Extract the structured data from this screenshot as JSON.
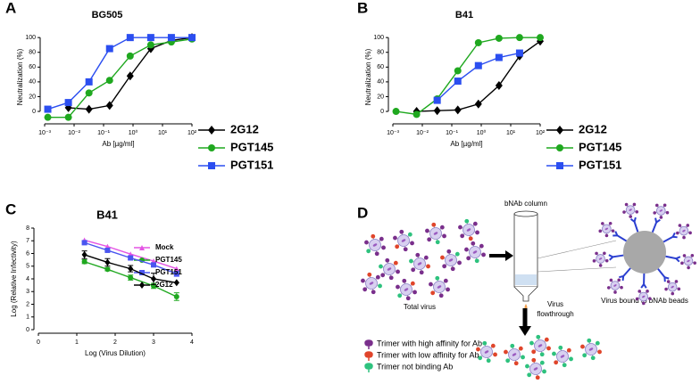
{
  "chart_data": [
    {
      "type": "line",
      "panel": "A",
      "title": "BG505",
      "x_label": "Ab [µg/ml]",
      "y_label": "Neutralization (%)",
      "xscale": "log",
      "xlim": [
        0.001,
        100
      ],
      "xticks": [
        {
          "value": 0.001,
          "label": "10⁻³"
        },
        {
          "value": 0.01,
          "label": "10⁻²"
        },
        {
          "value": 0.1,
          "label": "10⁻¹"
        },
        {
          "value": 1,
          "label": "10⁰"
        },
        {
          "value": 10,
          "label": "10¹"
        },
        {
          "value": 100,
          "label": "10²"
        }
      ],
      "ylim": [
        -12,
        105
      ],
      "yticks": [
        0,
        20,
        40,
        60,
        80,
        100
      ],
      "legend": "right",
      "x": [
        0.00128,
        0.0064,
        0.032,
        0.16,
        0.8,
        4,
        20,
        100
      ],
      "series": [
        {
          "name": "2G12",
          "color": "#000000",
          "marker": "diamond",
          "values": [
            null,
            5,
            3,
            8,
            48,
            85,
            96,
            100
          ]
        },
        {
          "name": "PGT145",
          "color": "#1fa81f",
          "marker": "circle",
          "values": [
            -8,
            -8,
            25,
            42,
            75,
            90,
            94,
            98
          ]
        },
        {
          "name": "PGT151",
          "color": "#2b4ef0",
          "marker": "square",
          "values": [
            3,
            12,
            40,
            85,
            100,
            100,
            100,
            100
          ]
        }
      ]
    },
    {
      "type": "line",
      "panel": "B",
      "title": "B41",
      "x_label": "Ab [µg/ml]",
      "y_label": "Neutralization (%)",
      "xscale": "log",
      "xlim": [
        0.001,
        100
      ],
      "xticks": [
        {
          "value": 0.001,
          "label": "10⁻³"
        },
        {
          "value": 0.01,
          "label": "10⁻²"
        },
        {
          "value": 0.1,
          "label": "10⁻¹"
        },
        {
          "value": 1,
          "label": "10⁰"
        },
        {
          "value": 10,
          "label": "10¹"
        },
        {
          "value": 100,
          "label": "10²"
        }
      ],
      "ylim": [
        -12,
        105
      ],
      "yticks": [
        0,
        20,
        40,
        60,
        80,
        100
      ],
      "legend": "right",
      "x": [
        0.00128,
        0.0064,
        0.032,
        0.16,
        0.8,
        4,
        20,
        100
      ],
      "series": [
        {
          "name": "2G12",
          "color": "#000000",
          "marker": "diamond",
          "values": [
            null,
            0,
            1,
            2,
            10,
            35,
            75,
            95
          ]
        },
        {
          "name": "PGT145",
          "color": "#1fa81f",
          "marker": "circle",
          "values": [
            0,
            -4,
            17,
            55,
            93,
            99,
            100,
            100
          ]
        },
        {
          "name": "PGT151",
          "color": "#2b4ef0",
          "marker": "square",
          "values": [
            null,
            null,
            15,
            41,
            62,
            73,
            79,
            null
          ]
        }
      ]
    },
    {
      "type": "line",
      "panel": "C",
      "title": "B41",
      "x_label": "Log (Virus Dilution)",
      "y_label": "Log (Relative Infectivity)",
      "xscale": "linear",
      "xlim": [
        0,
        4
      ],
      "xticks": [
        0,
        1,
        2,
        3,
        4
      ],
      "ylim": [
        0,
        8
      ],
      "yticks": [
        0,
        1,
        2,
        3,
        4,
        5,
        6,
        7,
        8
      ],
      "legend": "upper right",
      "x": [
        1.2,
        1.8,
        2.4,
        3.0,
        3.6
      ],
      "series": [
        {
          "name": "Mock",
          "color": "#e455e4",
          "marker": "triangle",
          "values": [
            7.05,
            6.55,
            5.95,
            5.4,
            4.8
          ]
        },
        {
          "name": "PGT145",
          "color": "#1fa81f",
          "marker": "circle",
          "values": [
            5.35,
            4.75,
            4.1,
            3.45,
            2.6
          ],
          "errors": [
            0.15,
            0.12,
            0.2,
            0.2,
            0.3
          ]
        },
        {
          "name": "PGT151",
          "color": "#4a55f0",
          "marker": "square",
          "values": [
            6.85,
            6.25,
            5.65,
            5.1,
            4.4
          ],
          "errors": [
            0.1,
            0.1,
            0.12,
            0.12,
            0.2
          ]
        },
        {
          "name": "2G12",
          "color": "#000000",
          "marker": "diamond",
          "values": [
            5.9,
            5.3,
            4.8,
            4.0,
            3.7
          ],
          "errors": [
            0.3,
            0.3,
            0.25,
            0.45,
            0.0
          ]
        }
      ]
    }
  ],
  "diagram": {
    "panel": "D",
    "column": "bNAb column",
    "total": "Total virus",
    "bound": "Virus bound to bNAb beads",
    "flow": [
      "Virus",
      "flowthrough"
    ],
    "legend": [
      "Trimer with high affinity for Ab",
      "Trimer with low affinity for Ab",
      "Trimer not binding Ab"
    ]
  }
}
